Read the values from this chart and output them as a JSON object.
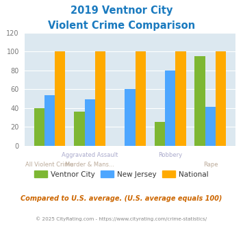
{
  "title_line1": "2019 Ventnor City",
  "title_line2": "Violent Crime Comparison",
  "ventnor_city": [
    40,
    36,
    0,
    25,
    95
  ],
  "new_jersey": [
    54,
    49,
    60,
    80,
    41
  ],
  "national": [
    100,
    100,
    100,
    100,
    100
  ],
  "colors": {
    "ventnor": "#7db733",
    "new_jersey": "#4da6ff",
    "national": "#ffaa00",
    "title": "#1a7abf",
    "background_chart": "#dce8f0",
    "xlabel_top_color": "#aaaacc",
    "xlabel_bot_color": "#bbaa99",
    "legend_text": "#333333",
    "footer_text": "#888888",
    "compare_text": "#cc6600"
  },
  "ylim": [
    0,
    120
  ],
  "yticks": [
    0,
    20,
    40,
    60,
    80,
    100,
    120
  ],
  "xlabel_top": [
    "",
    "Aggravated Assault",
    "",
    "Robbery",
    ""
  ],
  "xlabel_bot": [
    "All Violent Crime",
    "Murder & Mans...",
    "",
    "",
    "Rape"
  ],
  "legend_labels": [
    "Ventnor City",
    "New Jersey",
    "National"
  ],
  "compare_text": "Compared to U.S. average. (U.S. average equals 100)",
  "footer_text": "© 2025 CityRating.com - https://www.cityrating.com/crime-statistics/"
}
